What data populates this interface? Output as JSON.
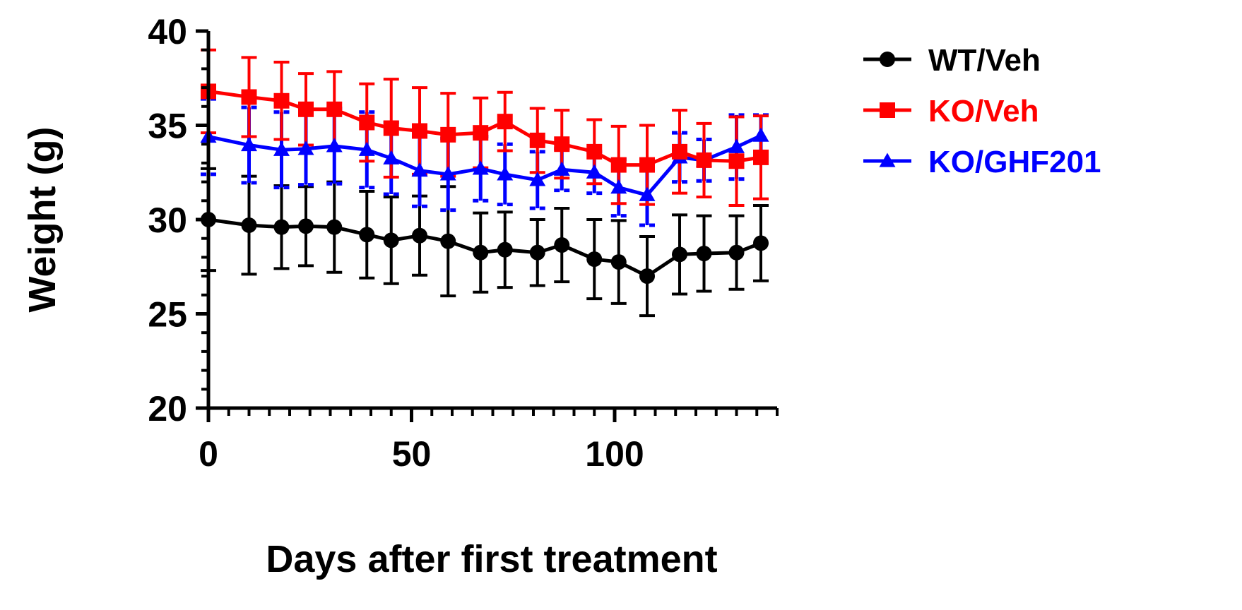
{
  "chart_data": {
    "type": "line",
    "title": "",
    "xlabel": "Days after first treatment",
    "ylabel": "Weight (g)",
    "xlim": [
      0,
      140
    ],
    "ylim": [
      20,
      40
    ],
    "x_major_ticks": [
      0,
      50,
      100
    ],
    "x_tick_labels": [
      "0",
      "50",
      "100"
    ],
    "y_major_ticks": [
      20,
      25,
      30,
      35,
      40
    ],
    "y_tick_labels": [
      "20",
      "25",
      "30",
      "35",
      "40"
    ],
    "grid": false,
    "legend_position": "top-right",
    "x": [
      0,
      10,
      18,
      24,
      31,
      39,
      45,
      52,
      59,
      67,
      73,
      81,
      87,
      95,
      101,
      108,
      116,
      122,
      130,
      136
    ],
    "series": [
      {
        "name": "WT/Veh",
        "color": "#000000",
        "marker": "circle",
        "values": [
          30.0,
          29.7,
          29.6,
          29.65,
          29.6,
          29.2,
          28.9,
          29.15,
          28.85,
          28.25,
          28.4,
          28.25,
          28.65,
          27.9,
          27.75,
          27.0,
          28.15,
          28.2,
          28.25,
          28.75
        ],
        "errors": [
          2.7,
          2.6,
          2.2,
          2.1,
          2.4,
          2.3,
          2.3,
          2.1,
          2.9,
          2.1,
          2.0,
          1.75,
          1.95,
          2.1,
          2.2,
          2.1,
          2.1,
          2.0,
          1.95,
          2.0
        ]
      },
      {
        "name": "KO/Veh",
        "color": "#ff0000",
        "marker": "square",
        "values": [
          36.8,
          36.5,
          36.3,
          35.85,
          35.85,
          35.15,
          34.85,
          34.7,
          34.5,
          34.6,
          35.2,
          34.2,
          34.0,
          33.6,
          32.9,
          32.9,
          33.6,
          33.15,
          33.1,
          33.3
        ],
        "errors": [
          2.2,
          2.1,
          2.05,
          1.9,
          2.0,
          2.05,
          2.6,
          2.3,
          2.2,
          1.85,
          1.55,
          1.7,
          1.8,
          1.7,
          2.05,
          2.1,
          2.2,
          1.95,
          2.35,
          2.2
        ]
      },
      {
        "name": "KO/GHF201",
        "color": "#0000ff",
        "marker": "triangle",
        "values": [
          34.4,
          33.95,
          33.7,
          33.75,
          33.9,
          33.7,
          33.25,
          32.6,
          32.4,
          32.7,
          32.4,
          32.1,
          32.65,
          32.5,
          31.7,
          31.3,
          33.3,
          33.15,
          33.85,
          34.45
        ],
        "errors": [
          2.0,
          2.0,
          2.0,
          1.9,
          2.0,
          2.0,
          1.9,
          1.9,
          1.9,
          1.7,
          1.6,
          1.5,
          1.1,
          1.1,
          1.5,
          1.6,
          1.3,
          1.1,
          1.7,
          1.1
        ]
      }
    ]
  }
}
